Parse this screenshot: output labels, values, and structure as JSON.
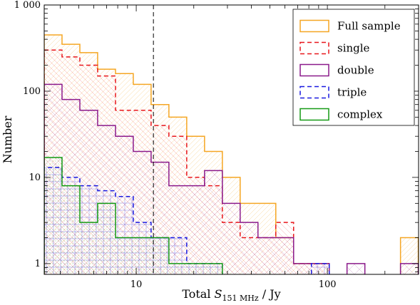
{
  "chart_data": {
    "type": "histogram",
    "xlabel_prefix": "Total ",
    "xlabel_var": "S",
    "xlabel_sub": "151 MHz",
    "xlabel_suffix": " / Jy",
    "ylabel": "Number",
    "x_scale": "log",
    "y_scale": "log",
    "xlim": [
      3.3,
      300
    ],
    "ylim": [
      0.75,
      1000
    ],
    "x_ticks": [
      {
        "value": 10,
        "label": "10"
      },
      {
        "value": 100,
        "label": "100"
      }
    ],
    "y_ticks": [
      {
        "value": 1,
        "label": "1"
      },
      {
        "value": 10,
        "label": "10"
      },
      {
        "value": 100,
        "label": "100"
      },
      {
        "value": 1000,
        "label": "1 000"
      }
    ],
    "grid": false,
    "legend_position": "top-right",
    "vline": {
      "x": 12.3,
      "style": "dashed",
      "color": "#000000"
    },
    "bin_edges": [
      3.3,
      4.09,
      5.07,
      6.28,
      7.79,
      9.65,
      11.96,
      14.82,
      18.37,
      22.77,
      28.22,
      34.97,
      43.34,
      53.72,
      66.57,
      82.5,
      102.3,
      126.7,
      157.1,
      194.7,
      241.3,
      299
    ],
    "series": [
      {
        "name": "Full sample",
        "color": "#f5a623",
        "dash": "",
        "values": [
          450,
          350,
          280,
          180,
          160,
          120,
          70,
          50,
          30,
          20,
          10,
          5,
          5,
          2,
          1,
          1,
          0,
          0,
          0,
          0,
          2
        ]
      },
      {
        "name": "single",
        "color": "#e8161b",
        "dash": "6,4",
        "values": [
          300,
          250,
          200,
          150,
          60,
          60,
          40,
          30,
          10,
          8,
          3,
          2,
          2,
          3,
          1,
          1,
          0,
          0,
          0,
          0,
          0
        ]
      },
      {
        "name": "double",
        "color": "#8b1a8b",
        "dash": "",
        "values": [
          120,
          80,
          60,
          40,
          30,
          20,
          15,
          8,
          8,
          12,
          5,
          3,
          2,
          2,
          1,
          1,
          0,
          1,
          0,
          0,
          1
        ]
      },
      {
        "name": "triple",
        "color": "#1a1ae0",
        "dash": "6,4",
        "values": [
          13,
          10,
          8,
          7,
          6,
          3,
          2,
          2,
          1,
          1,
          0,
          0,
          0,
          0,
          0,
          1,
          0,
          0,
          0,
          0,
          0
        ]
      },
      {
        "name": "complex",
        "color": "#159a15",
        "dash": "",
        "values": [
          17,
          8,
          3,
          5,
          2,
          2,
          2,
          1,
          1,
          1,
          0,
          0,
          0,
          0,
          0,
          0,
          0,
          0,
          0,
          0,
          0
        ]
      }
    ]
  }
}
